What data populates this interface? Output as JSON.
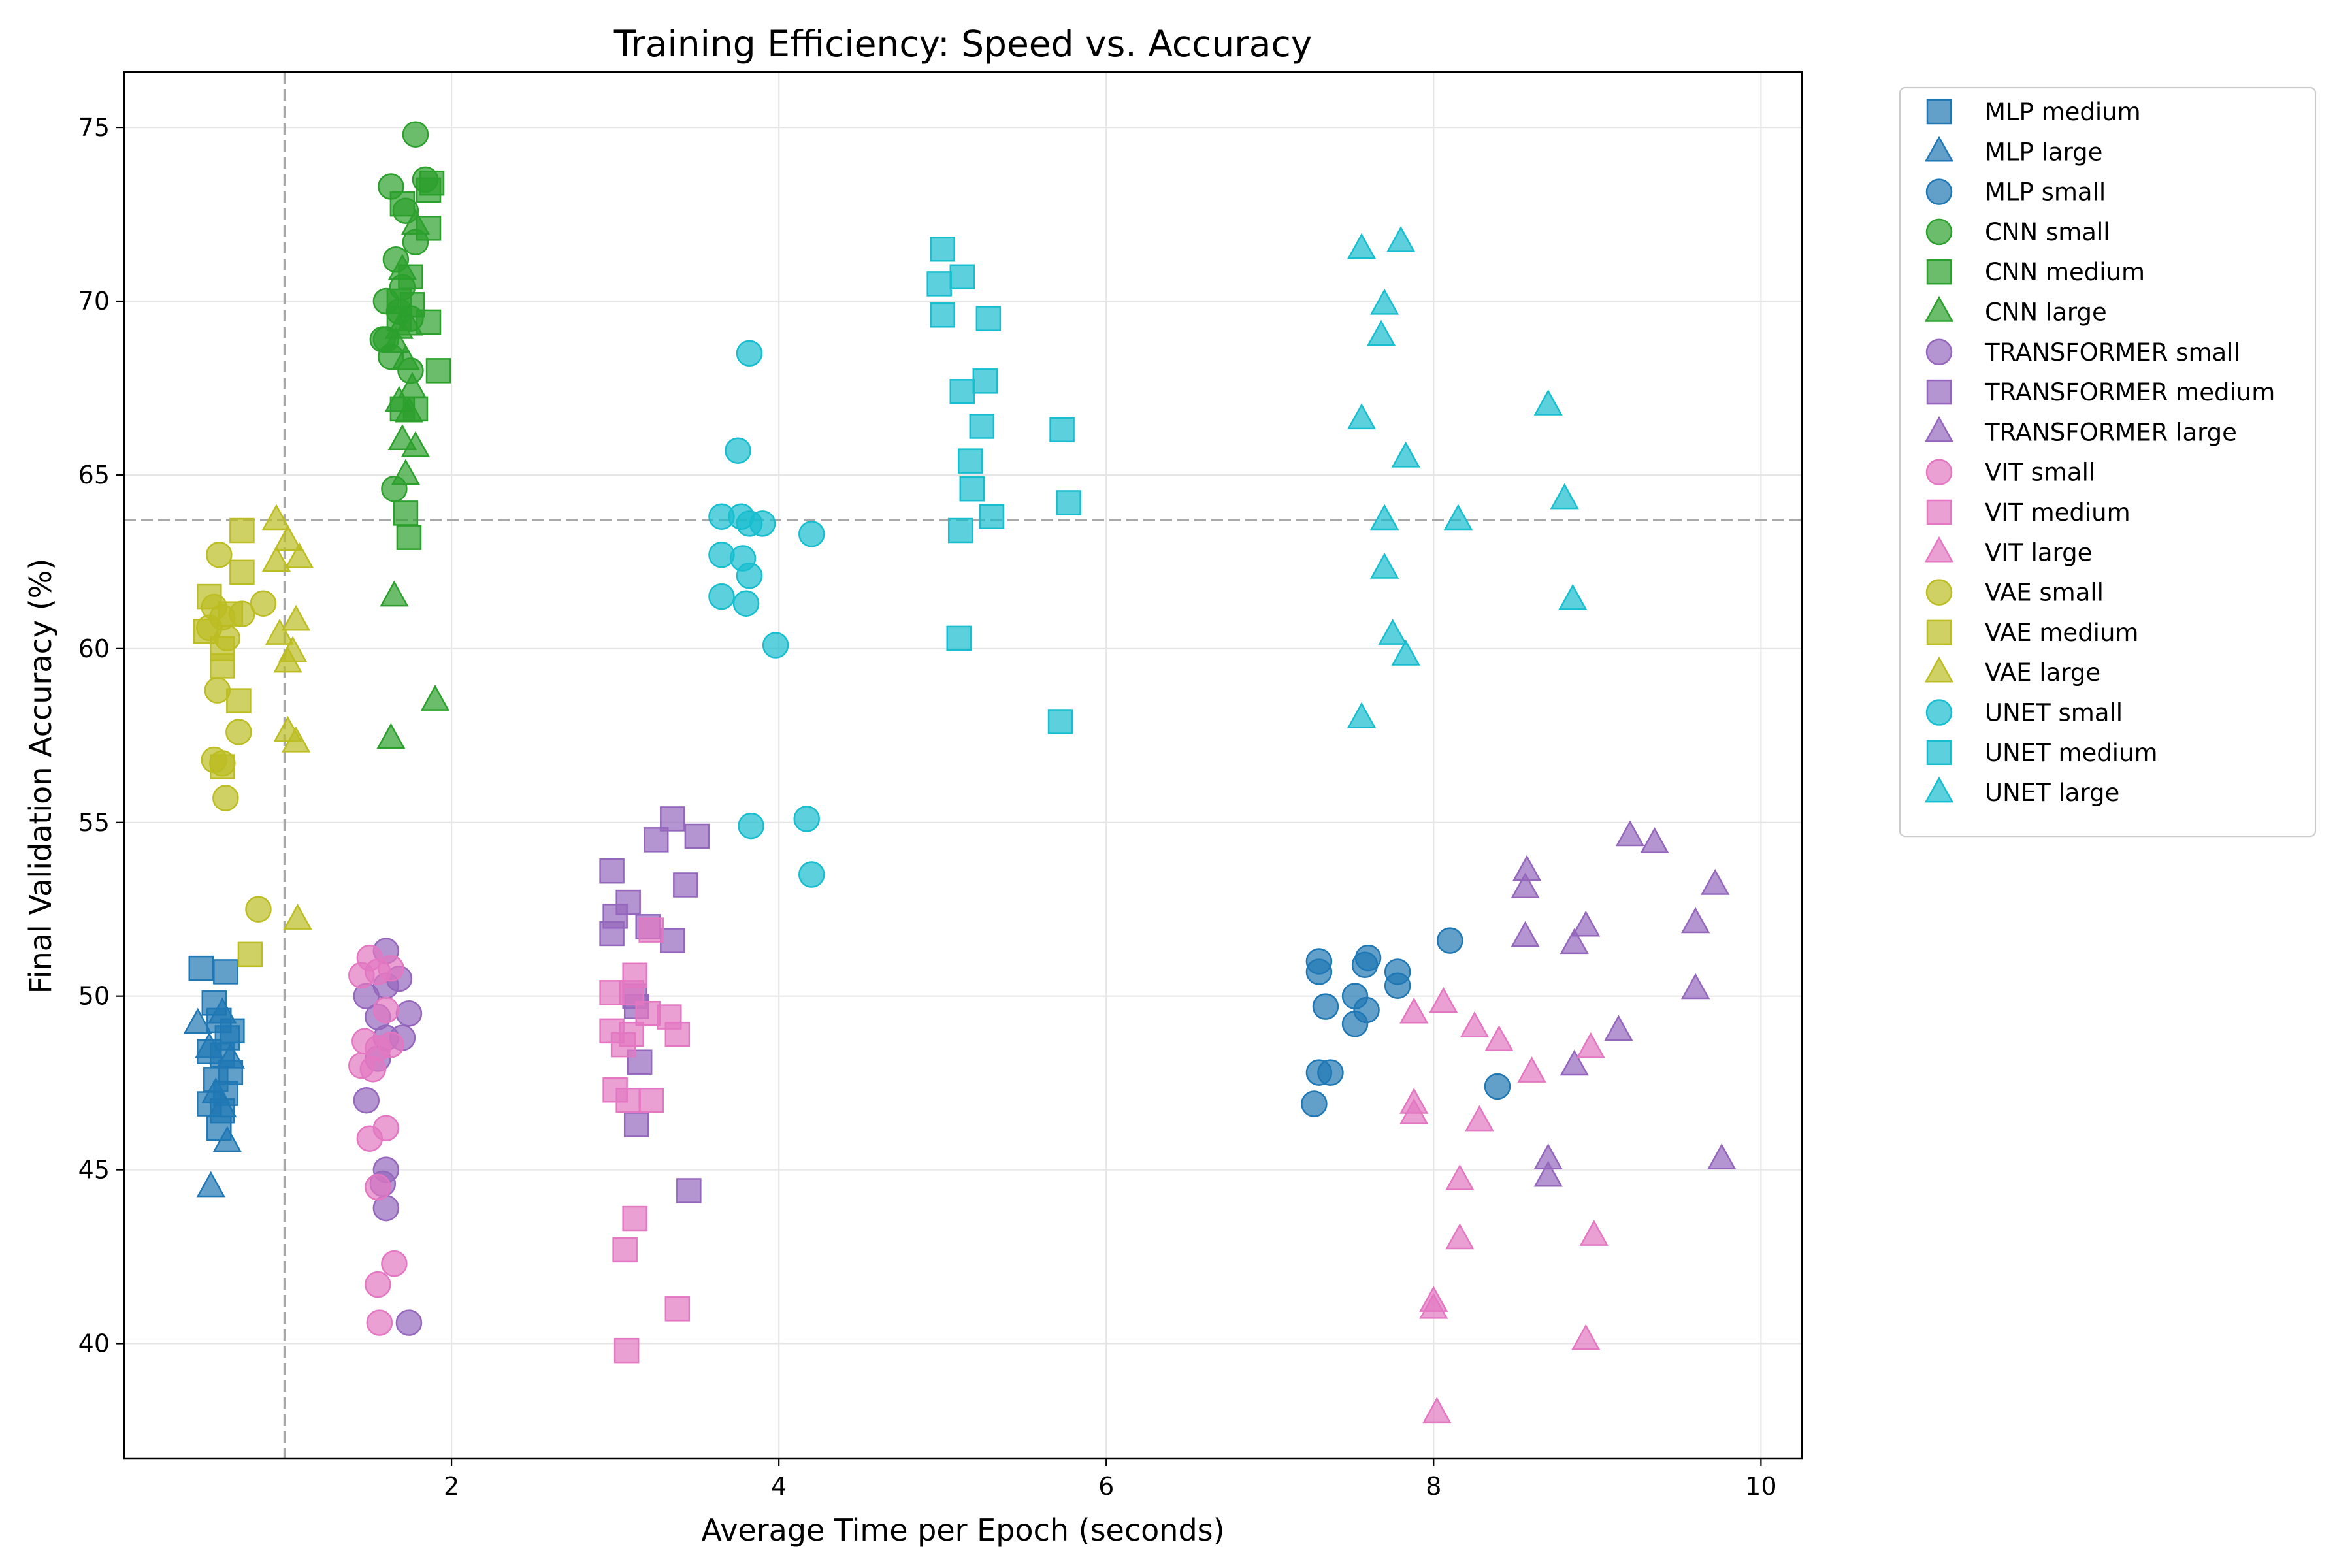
{
  "chart_data": {
    "type": "scatter",
    "title": "Training Efficiency: Speed vs. Accuracy",
    "xlabel": "Average Time per Epoch (seconds)",
    "ylabel": "Final Validation Accuracy (%)",
    "xlim": [
      0.0,
      10.25
    ],
    "ylim": [
      36.7,
      76.6
    ],
    "xticks": [
      2,
      4,
      6,
      8,
      10
    ],
    "yticks": [
      40,
      45,
      50,
      55,
      60,
      65,
      70,
      75
    ],
    "grid": true,
    "legend_position": "outside-right",
    "reference_lines": {
      "vertical_x": 0.98,
      "horizontal_y": 63.7
    },
    "colors": {
      "MLP": "#1f77b4",
      "CNN": "#2ca02c",
      "TRANSFORMER": "#9467bd",
      "VIT": "#e377c2",
      "VAE": "#bcbd22",
      "UNET": "#17becf"
    },
    "series": [
      {
        "name": "MLP medium",
        "model": "MLP",
        "marker": "square",
        "points": [
          [
            0.47,
            50.8
          ],
          [
            0.55,
            49.8
          ],
          [
            0.62,
            50.7
          ],
          [
            0.58,
            49.3
          ],
          [
            0.66,
            49.0
          ],
          [
            0.52,
            48.4
          ],
          [
            0.6,
            48.3
          ],
          [
            0.65,
            47.8
          ],
          [
            0.56,
            47.6
          ],
          [
            0.62,
            47.2
          ],
          [
            0.52,
            46.9
          ],
          [
            0.6,
            46.7
          ],
          [
            0.58,
            46.2
          ],
          [
            0.63,
            48.8
          ]
        ]
      },
      {
        "name": "MLP large",
        "model": "MLP",
        "marker": "triangle",
        "points": [
          [
            0.45,
            49.2
          ],
          [
            0.6,
            49.5
          ],
          [
            0.52,
            48.5
          ],
          [
            0.65,
            48.2
          ],
          [
            0.56,
            47.2
          ],
          [
            0.6,
            46.8
          ],
          [
            0.63,
            45.8
          ],
          [
            0.53,
            44.5
          ]
        ]
      },
      {
        "name": "MLP small",
        "model": "MLP",
        "marker": "circle",
        "points": [
          [
            7.3,
            51.0
          ],
          [
            7.6,
            51.1
          ],
          [
            8.1,
            51.6
          ],
          [
            7.3,
            50.7
          ],
          [
            7.78,
            50.7
          ],
          [
            7.52,
            50.0
          ],
          [
            7.58,
            50.9
          ],
          [
            7.34,
            49.7
          ],
          [
            7.59,
            49.6
          ],
          [
            7.52,
            49.2
          ],
          [
            7.78,
            50.3
          ],
          [
            7.3,
            47.8
          ],
          [
            7.37,
            47.8
          ],
          [
            7.27,
            46.9
          ],
          [
            8.39,
            47.4
          ]
        ]
      },
      {
        "name": "CNN small",
        "model": "CNN",
        "marker": "circle",
        "points": [
          [
            1.78,
            74.8
          ],
          [
            1.84,
            73.5
          ],
          [
            1.63,
            73.3
          ],
          [
            1.72,
            72.6
          ],
          [
            1.66,
            71.2
          ],
          [
            1.78,
            71.7
          ],
          [
            1.7,
            70.4
          ],
          [
            1.6,
            70.0
          ],
          [
            1.75,
            69.5
          ],
          [
            1.6,
            68.9
          ],
          [
            1.63,
            68.4
          ],
          [
            1.75,
            68.0
          ],
          [
            1.65,
            64.6
          ],
          [
            1.58,
            68.9
          ],
          [
            1.68,
            69.7
          ]
        ]
      },
      {
        "name": "CNN medium",
        "model": "CNN",
        "marker": "square",
        "points": [
          [
            1.88,
            73.4
          ],
          [
            1.7,
            72.8
          ],
          [
            1.86,
            72.1
          ],
          [
            1.75,
            70.7
          ],
          [
            1.68,
            69.5
          ],
          [
            1.86,
            69.4
          ],
          [
            1.92,
            68.0
          ],
          [
            1.7,
            66.9
          ],
          [
            1.78,
            66.9
          ],
          [
            1.72,
            63.9
          ],
          [
            1.74,
            63.2
          ],
          [
            1.86,
            73.2
          ],
          [
            1.68,
            70.0
          ],
          [
            1.76,
            69.9
          ]
        ]
      },
      {
        "name": "CNN large",
        "model": "CNN",
        "marker": "triangle",
        "points": [
          [
            1.78,
            72.2
          ],
          [
            1.7,
            70.9
          ],
          [
            1.74,
            69.3
          ],
          [
            1.72,
            68.3
          ],
          [
            1.66,
            68.8
          ],
          [
            1.68,
            67.1
          ],
          [
            1.74,
            66.8
          ],
          [
            1.7,
            66.0
          ],
          [
            1.78,
            65.8
          ],
          [
            1.72,
            65.0
          ],
          [
            1.65,
            61.5
          ],
          [
            1.9,
            58.5
          ],
          [
            1.63,
            57.4
          ],
          [
            1.76,
            67.5
          ],
          [
            1.68,
            69.2
          ]
        ]
      },
      {
        "name": "TRANSFORMER small",
        "model": "TRANSFORMER",
        "marker": "circle",
        "points": [
          [
            1.6,
            51.3
          ],
          [
            1.48,
            50.0
          ],
          [
            1.6,
            50.3
          ],
          [
            1.68,
            50.5
          ],
          [
            1.55,
            49.4
          ],
          [
            1.74,
            49.5
          ],
          [
            1.6,
            48.8
          ],
          [
            1.7,
            48.8
          ],
          [
            1.55,
            48.2
          ],
          [
            1.48,
            47.0
          ],
          [
            1.6,
            45.0
          ],
          [
            1.58,
            44.6
          ],
          [
            1.6,
            43.9
          ],
          [
            1.74,
            40.6
          ]
        ]
      },
      {
        "name": "TRANSFORMER medium",
        "model": "TRANSFORMER",
        "marker": "square",
        "points": [
          [
            3.35,
            55.1
          ],
          [
            3.25,
            54.5
          ],
          [
            3.5,
            54.6
          ],
          [
            2.98,
            53.6
          ],
          [
            3.43,
            53.2
          ],
          [
            3.08,
            52.7
          ],
          [
            3.0,
            52.3
          ],
          [
            3.2,
            52.0
          ],
          [
            2.98,
            51.8
          ],
          [
            3.35,
            51.6
          ],
          [
            3.12,
            50.0
          ],
          [
            3.13,
            49.7
          ],
          [
            3.15,
            48.1
          ],
          [
            3.13,
            46.3
          ],
          [
            3.45,
            44.4
          ]
        ]
      },
      {
        "name": "TRANSFORMER large",
        "model": "TRANSFORMER",
        "marker": "triangle",
        "points": [
          [
            9.2,
            54.6
          ],
          [
            9.35,
            54.4
          ],
          [
            8.57,
            53.6
          ],
          [
            8.56,
            53.1
          ],
          [
            9.72,
            53.2
          ],
          [
            9.6,
            52.1
          ],
          [
            8.93,
            52.0
          ],
          [
            8.56,
            51.7
          ],
          [
            8.86,
            51.5
          ],
          [
            9.6,
            50.2
          ],
          [
            9.13,
            49.0
          ],
          [
            8.86,
            48.0
          ],
          [
            8.7,
            45.3
          ],
          [
            8.7,
            44.8
          ],
          [
            9.76,
            45.3
          ]
        ]
      },
      {
        "name": "VIT small",
        "model": "VIT",
        "marker": "circle",
        "points": [
          [
            1.5,
            51.1
          ],
          [
            1.45,
            50.6
          ],
          [
            1.55,
            50.7
          ],
          [
            1.63,
            50.8
          ],
          [
            1.6,
            49.6
          ],
          [
            1.47,
            48.7
          ],
          [
            1.55,
            48.5
          ],
          [
            1.63,
            48.6
          ],
          [
            1.45,
            48.0
          ],
          [
            1.52,
            47.9
          ],
          [
            1.6,
            46.2
          ],
          [
            1.5,
            45.9
          ],
          [
            1.55,
            44.5
          ],
          [
            1.65,
            42.3
          ],
          [
            1.55,
            41.7
          ],
          [
            1.56,
            40.6
          ]
        ]
      },
      {
        "name": "VIT medium",
        "model": "VIT",
        "marker": "square",
        "points": [
          [
            3.22,
            51.9
          ],
          [
            3.12,
            50.6
          ],
          [
            2.98,
            50.1
          ],
          [
            3.1,
            50.1
          ],
          [
            3.2,
            49.5
          ],
          [
            3.33,
            49.4
          ],
          [
            2.98,
            49.0
          ],
          [
            3.1,
            48.9
          ],
          [
            3.38,
            48.9
          ],
          [
            3.05,
            48.6
          ],
          [
            3.0,
            47.3
          ],
          [
            3.08,
            47.0
          ],
          [
            3.22,
            47.0
          ],
          [
            3.12,
            43.6
          ],
          [
            3.06,
            42.7
          ],
          [
            3.38,
            41.0
          ],
          [
            3.07,
            39.8
          ]
        ]
      },
      {
        "name": "VIT large",
        "model": "VIT",
        "marker": "triangle",
        "points": [
          [
            8.06,
            49.8
          ],
          [
            7.88,
            49.5
          ],
          [
            8.25,
            49.1
          ],
          [
            8.4,
            48.7
          ],
          [
            8.96,
            48.5
          ],
          [
            8.6,
            47.8
          ],
          [
            7.88,
            46.9
          ],
          [
            7.88,
            46.6
          ],
          [
            8.28,
            46.4
          ],
          [
            8.16,
            44.7
          ],
          [
            8.98,
            43.1
          ],
          [
            8.16,
            43.0
          ],
          [
            8.0,
            41.2
          ],
          [
            8.0,
            41.0
          ],
          [
            8.93,
            40.1
          ],
          [
            8.02,
            38.0
          ]
        ]
      },
      {
        "name": "VAE small",
        "model": "VAE",
        "marker": "circle",
        "points": [
          [
            0.58,
            62.7
          ],
          [
            0.55,
            61.2
          ],
          [
            0.6,
            60.9
          ],
          [
            0.52,
            60.6
          ],
          [
            0.72,
            61.0
          ],
          [
            0.85,
            61.3
          ],
          [
            0.57,
            58.8
          ],
          [
            0.7,
            57.6
          ],
          [
            0.55,
            56.8
          ],
          [
            0.6,
            56.7
          ],
          [
            0.62,
            55.7
          ],
          [
            0.82,
            52.5
          ],
          [
            0.63,
            60.3
          ]
        ]
      },
      {
        "name": "VAE medium",
        "model": "VAE",
        "marker": "square",
        "points": [
          [
            0.72,
            63.4
          ],
          [
            0.72,
            62.2
          ],
          [
            0.52,
            61.5
          ],
          [
            0.5,
            60.5
          ],
          [
            0.6,
            60.0
          ],
          [
            0.6,
            59.5
          ],
          [
            0.7,
            58.5
          ],
          [
            0.6,
            56.6
          ],
          [
            0.77,
            51.2
          ],
          [
            0.65,
            61.0
          ]
        ]
      },
      {
        "name": "VAE large",
        "model": "VAE",
        "marker": "triangle",
        "points": [
          [
            0.93,
            63.7
          ],
          [
            1.0,
            63.1
          ],
          [
            0.93,
            62.5
          ],
          [
            1.07,
            62.6
          ],
          [
            1.05,
            60.8
          ],
          [
            0.95,
            60.4
          ],
          [
            1.03,
            59.9
          ],
          [
            1.0,
            59.6
          ],
          [
            1.0,
            57.6
          ],
          [
            1.05,
            57.3
          ],
          [
            1.06,
            52.2
          ]
        ]
      },
      {
        "name": "UNET small",
        "model": "UNET",
        "marker": "circle",
        "points": [
          [
            3.82,
            68.5
          ],
          [
            3.75,
            65.7
          ],
          [
            3.65,
            63.8
          ],
          [
            3.77,
            63.8
          ],
          [
            3.82,
            63.6
          ],
          [
            3.9,
            63.6
          ],
          [
            4.2,
            63.3
          ],
          [
            3.65,
            62.7
          ],
          [
            3.78,
            62.6
          ],
          [
            3.82,
            62.1
          ],
          [
            3.65,
            61.5
          ],
          [
            3.8,
            61.3
          ],
          [
            3.98,
            60.1
          ],
          [
            3.83,
            54.9
          ],
          [
            4.17,
            55.1
          ],
          [
            4.2,
            53.5
          ]
        ]
      },
      {
        "name": "UNET medium",
        "model": "UNET",
        "marker": "square",
        "points": [
          [
            5.0,
            71.5
          ],
          [
            5.12,
            70.7
          ],
          [
            4.98,
            70.5
          ],
          [
            5.0,
            69.6
          ],
          [
            5.28,
            69.5
          ],
          [
            5.26,
            67.7
          ],
          [
            5.12,
            67.4
          ],
          [
            5.24,
            66.4
          ],
          [
            5.73,
            66.3
          ],
          [
            5.17,
            65.4
          ],
          [
            5.18,
            64.6
          ],
          [
            5.77,
            64.2
          ],
          [
            5.3,
            63.8
          ],
          [
            5.11,
            63.4
          ],
          [
            5.1,
            60.3
          ],
          [
            5.72,
            57.9
          ]
        ]
      },
      {
        "name": "UNET large",
        "model": "UNET",
        "marker": "triangle",
        "points": [
          [
            7.56,
            71.5
          ],
          [
            7.8,
            71.7
          ],
          [
            7.7,
            69.9
          ],
          [
            7.68,
            69.0
          ],
          [
            8.7,
            67.0
          ],
          [
            7.56,
            66.6
          ],
          [
            7.83,
            65.5
          ],
          [
            8.8,
            64.3
          ],
          [
            7.7,
            63.7
          ],
          [
            8.15,
            63.7
          ],
          [
            7.7,
            62.3
          ],
          [
            7.75,
            60.4
          ],
          [
            7.83,
            59.8
          ],
          [
            8.85,
            61.4
          ],
          [
            7.56,
            58.0
          ]
        ]
      }
    ]
  }
}
